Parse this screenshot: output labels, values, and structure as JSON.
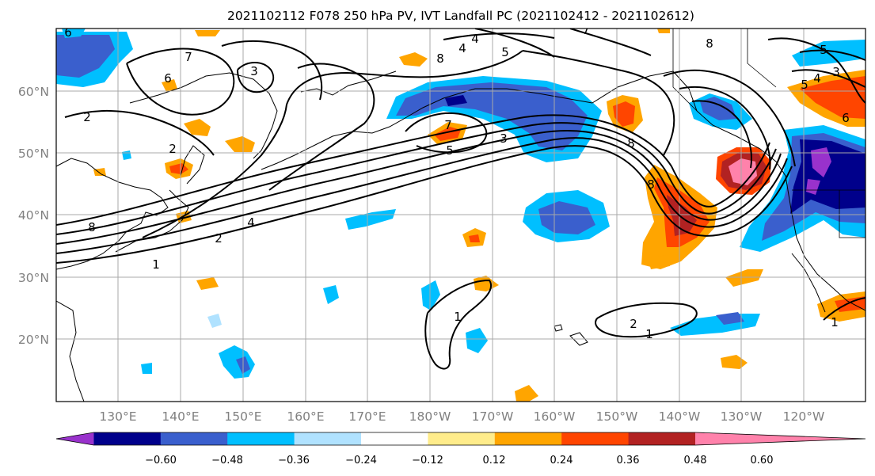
{
  "title": "2021102112 F078 250 hPa PV, IVT Landfall PC (2021102412 - 2021102612)",
  "lat_labels": [
    "60°N",
    "50°N",
    "40°N",
    "30°N",
    "20°N"
  ],
  "lon_labels": [
    "130°E",
    "140°E",
    "150°E",
    "160°E",
    "170°E",
    "180°W",
    "170°W",
    "160°W",
    "150°W",
    "140°W",
    "130°W",
    "120°W"
  ],
  "colorbar": {
    "colors": [
      "#9932cc",
      "#00008b",
      "#3a5fcd",
      "#00bfff",
      "#b0e2ff",
      "#ffffff",
      "#ffec8b",
      "#ffa500",
      "#ff4500",
      "#b22222",
      "#ff82ab"
    ],
    "tick_labels": [
      "−0.60",
      "−0.48",
      "−0.36",
      "−0.24",
      "−0.12",
      "0.12",
      "0.24",
      "0.36",
      "0.48",
      "0.60"
    ]
  },
  "contour_labels": [
    "6",
    "7",
    "6",
    "2",
    "2",
    "3",
    "4",
    "8",
    "4",
    "5",
    "7",
    "8",
    "5",
    "3",
    "7",
    "4",
    "2",
    "1",
    "8",
    "8",
    "5",
    "4",
    "6",
    "3",
    "5",
    "1",
    "1",
    "2",
    "1",
    "8"
  ]
}
